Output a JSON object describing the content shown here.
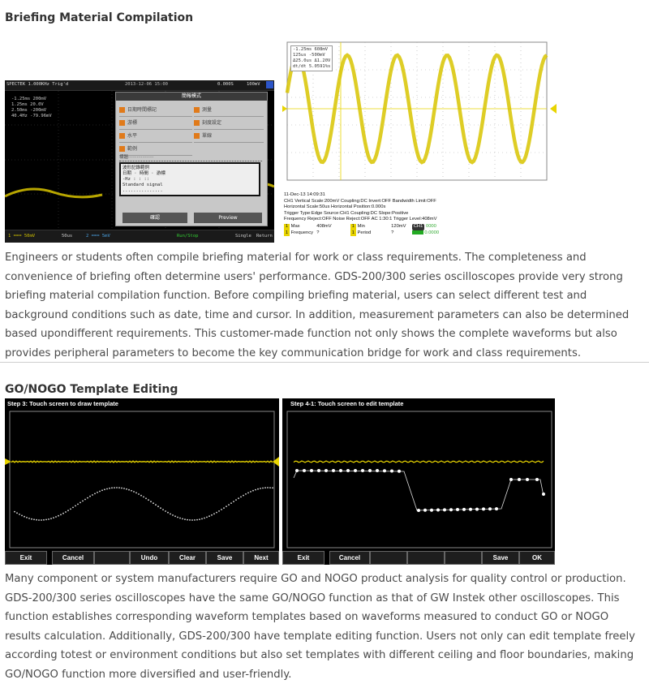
{
  "section1": {
    "title": "Briefing Material Compilation",
    "paragraph": "Engineers or students often compile briefing material for work or class requirements. The completeness and convenience of briefing often determine users' performance. GDS-200/300 series oscilloscopes provide very strong briefing material compilation function. Before compiling briefing material, users can select different test and background conditions such as date, time and cursor. In addition, measurement parameters can also be determined based upondifferent requirements. This customer-made function not only shows the complete waveforms but also provides peripheral parameters to become the key communication bridge for work and class requirements."
  },
  "shot1": {
    "status_left": "SPECTEK  1.000KHz  Trig'd",
    "status_date": "2013-12-06  15:00",
    "status_time": "0.000S",
    "status_volt": "100mV",
    "cursor_lines": [
      "-1.25ms   200mV",
      "1.25ms   20.0V",
      "2.50ms   -200mV",
      "40.4Hz   -79.96mV"
    ],
    "dialog_title": "簡報模式",
    "options_left": [
      "日期時間標記",
      "游標",
      "水平",
      "範例"
    ],
    "options_right": [
      "測量",
      "刻度設定",
      "單線"
    ],
    "input_label": "標題",
    "preview_lines": [
      "波形記錄範例",
      "日期 · 時間 · 游標",
      "-Hz  : : ::",
      "Standard signal",
      "..............."
    ],
    "btn_back": "確認",
    "btn_preview": "Preview",
    "bottom_items": [
      "1 ===  50mV",
      "50us",
      "2 ===  5mV",
      "Run/Stop",
      "Single",
      "Return"
    ]
  },
  "shot2": {
    "cursor_lines": [
      "-1.25ms   608mV",
      "125us     -500mV",
      "Δ25.0us   Δ1.20V",
      "dt/dt     5.0591%s"
    ],
    "meta_lines": [
      "11-Dec-13 14:09:31",
      "CH1  Vertical Scale:200mV Coupling:DC Invert:OFF Bandwidth Limit:OFF",
      "Horizontal Scale:50us Horizontal Position:0.000s",
      "Trigger Type:Edge Source:CH1 Coupling:DC Slope:Positive",
      "Frequency Reject:OFF Noise Reject:OFF AC 1:30:1  Trigger Level:408mV"
    ],
    "meas": [
      {
        "badge": "1",
        "label": "Max",
        "value": "408mV"
      },
      {
        "badge": "1",
        "label": "Min",
        "value": "120mV"
      },
      {
        "badge": "1",
        "label": "Frequency",
        "value": "?"
      },
      {
        "badge": "1",
        "label": "Period",
        "value": "?"
      }
    ],
    "status_tag": "CH1",
    "status_count": "0000",
    "status_digits": "0.0000"
  },
  "section2": {
    "title": "GO/NOGO Template Editing",
    "paragraph": "Many component or system manufacturers require GO and NOGO product analysis for quality control or production. GDS-200/300 series oscilloscopes have the same GO/NOGO function as that of GW Instek other oscilloscopes. This function establishes corresponding waveform templates based on waveforms measured to conduct GO or NOGO results calculation. Additionally, GDS-200/300 have template editing function. Users not only can edit template freely according totest or environment conditions but also set templates with different ceiling and floor boundaries, making GO/NOGO function more diversified and user-friendly."
  },
  "shot3": {
    "step": "Step 3: Touch screen to draw template",
    "buttons": [
      "Exit",
      "Cancel",
      "",
      "Undo",
      "Clear",
      "Save",
      "Next"
    ]
  },
  "shot4": {
    "step": "Step 4-1: Touch screen to edit template",
    "buttons": [
      "Exit",
      "Cancel",
      "",
      "",
      "",
      "Save",
      "OK"
    ]
  },
  "colors": {
    "trace_yellow": "#e8d400",
    "scope_bg": "#000000",
    "dialog_bg": "#c8c8c8"
  }
}
